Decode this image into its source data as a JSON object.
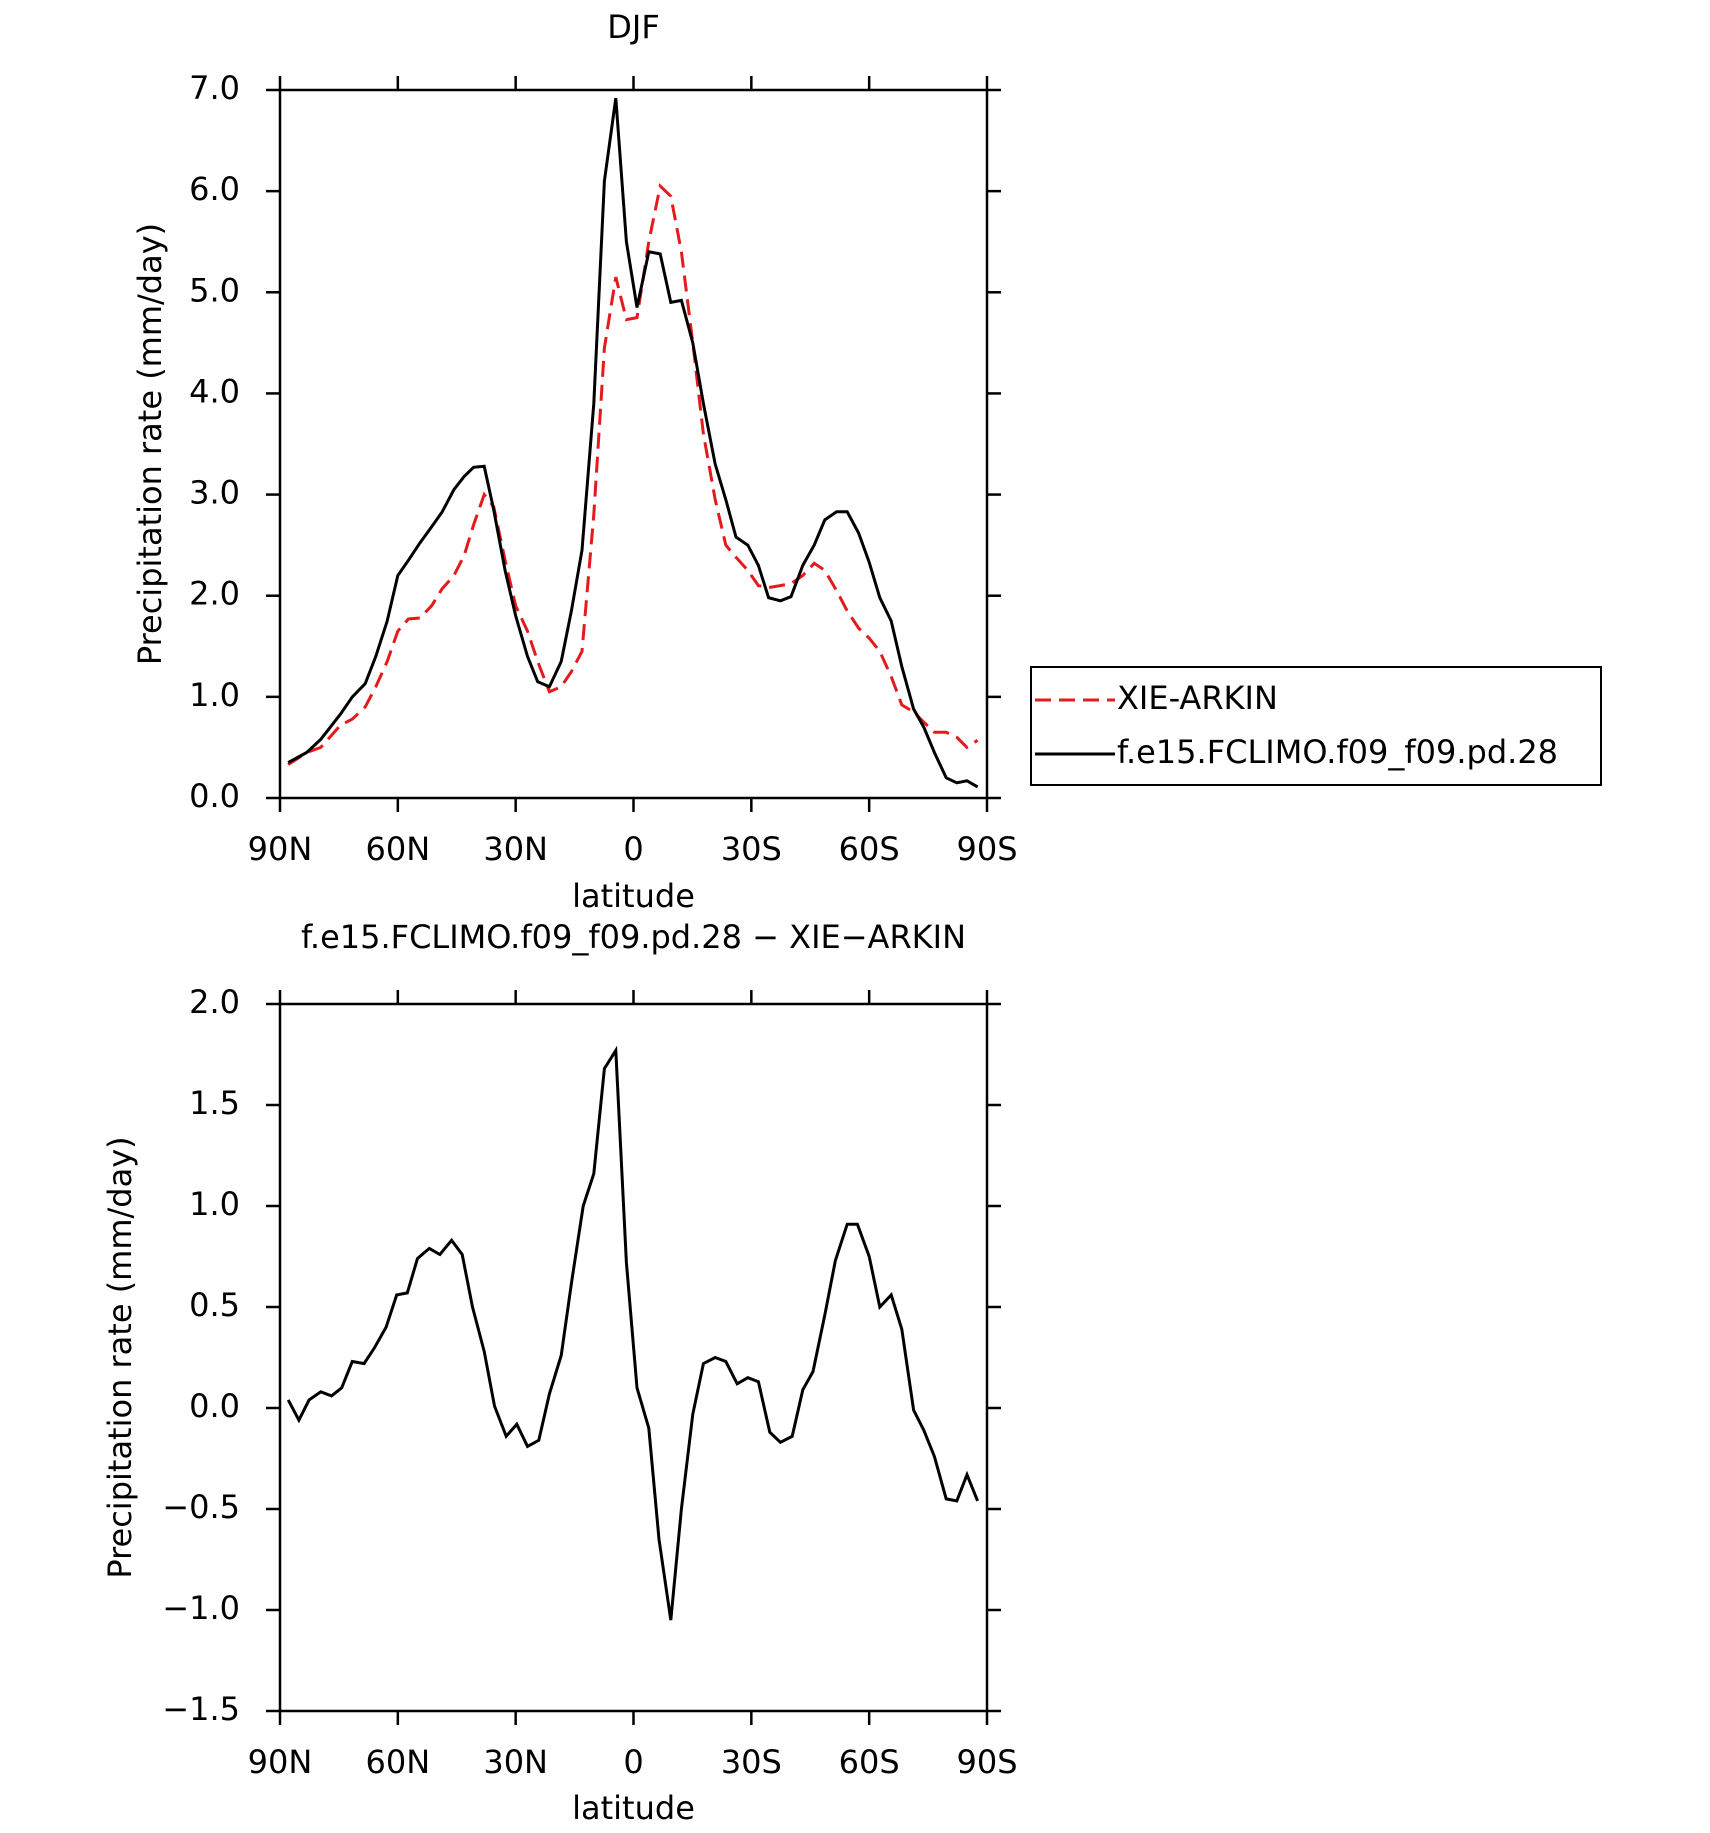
{
  "chart_data": [
    {
      "type": "line",
      "title": "DJF",
      "xlabel": "latitude",
      "ylabel": "Precipitation rate (mm/day)",
      "x": [
        87.9,
        83.2,
        79.6,
        74.6,
        71.6,
        68.3,
        65.6,
        62.7,
        60,
        57.3,
        54.4,
        51.4,
        48.7,
        45.7,
        43.1,
        40.7,
        38,
        35.6,
        32.7,
        30,
        27,
        24.4,
        21.4,
        18.4,
        15.8,
        13.1,
        10.1,
        7.4,
        4.5,
        1.8,
        -0.9,
        -3.9,
        -6.8,
        -9.5,
        -12.2,
        -15.1,
        -17.8,
        -20.8,
        -23.5,
        -26.1,
        -29.1,
        -31.8,
        -34.4,
        -37.4,
        -40.1,
        -43.1,
        -46,
        -48.7,
        -51.7,
        -54.4,
        -57.3,
        -60,
        -62.7,
        -65.6,
        -68.3,
        -71.3,
        -73.9,
        -76.6,
        -79.6,
        -82.3,
        -84.9,
        -87.6
      ],
      "series": [
        {
          "name": "XIE-ARKIN",
          "color": "#e41a1c",
          "dash": true,
          "values": [
            0.33,
            0.45,
            0.5,
            0.72,
            0.78,
            0.9,
            1.1,
            1.35,
            1.65,
            1.77,
            1.78,
            1.9,
            2.07,
            2.2,
            2.4,
            2.7,
            3.0,
            2.88,
            2.35,
            1.9,
            1.65,
            1.35,
            1.05,
            1.1,
            1.25,
            1.45,
            2.8,
            4.45,
            5.15,
            4.73,
            4.75,
            5.5,
            6.05,
            5.95,
            5.4,
            4.5,
            3.6,
            2.95,
            2.5,
            2.38,
            2.25,
            2.1,
            2.08,
            2.1,
            2.12,
            2.2,
            2.32,
            2.25,
            2.05,
            1.85,
            1.68,
            1.58,
            1.45,
            1.2,
            0.92,
            0.85,
            0.75,
            0.65,
            0.65,
            0.6,
            0.5,
            0.57
          ]
        },
        {
          "name": "f.e15.FCLIMO.f09_f09.pd.28",
          "color": "#000000",
          "dash": false,
          "values": [
            0.35,
            0.45,
            0.58,
            0.83,
            1.0,
            1.13,
            1.4,
            1.75,
            2.2,
            2.35,
            2.52,
            2.68,
            2.83,
            3.05,
            3.18,
            3.27,
            3.28,
            2.85,
            2.25,
            1.8,
            1.4,
            1.15,
            1.1,
            1.35,
            1.85,
            2.45,
            3.9,
            6.1,
            6.92,
            5.5,
            4.85,
            5.4,
            5.38,
            4.9,
            4.92,
            4.5,
            3.9,
            3.3,
            2.95,
            2.58,
            2.5,
            2.3,
            1.98,
            1.95,
            1.99,
            2.3,
            2.5,
            2.75,
            2.83,
            2.83,
            2.62,
            2.33,
            1.98,
            1.75,
            1.3,
            0.88,
            0.7,
            0.45,
            0.2,
            0.15,
            0.17,
            0.11
          ]
        }
      ],
      "xlim": [
        90,
        -90
      ],
      "xticks": [
        {
          "value": 90,
          "label": "90N"
        },
        {
          "value": 60,
          "label": "60N"
        },
        {
          "value": 30,
          "label": "30N"
        },
        0,
        {
          "value": -30,
          "label": "30S"
        },
        {
          "value": -60,
          "label": "60S"
        },
        {
          "value": -90,
          "label": "90S"
        }
      ],
      "ylim": [
        0,
        7
      ],
      "yticks": [
        {
          "value": 0,
          "label": "0.0"
        },
        {
          "value": 1,
          "label": "1.0"
        },
        {
          "value": 2,
          "label": "2.0"
        },
        {
          "value": 3,
          "label": "3.0"
        },
        {
          "value": 4,
          "label": "4.0"
        },
        {
          "value": 5,
          "label": "5.0"
        },
        {
          "value": 6,
          "label": "6.0"
        },
        {
          "value": 7,
          "label": "7.0"
        }
      ],
      "legend": "right"
    },
    {
      "type": "line",
      "title": "f.e15.FCLIMO.f09_f09.pd.28 − XIE−ARKIN",
      "xlabel": "latitude",
      "ylabel": "Precipitation rate (mm/day)",
      "x": [
        87.9,
        85.2,
        82.6,
        79.6,
        76.9,
        74.3,
        71.6,
        68.6,
        65.9,
        63.0,
        60.3,
        57.6,
        55.0,
        52.0,
        49.3,
        46.3,
        43.6,
        41.0,
        38.0,
        35.4,
        32.4,
        29.7,
        27.0,
        24.1,
        21.4,
        18.4,
        15.7,
        12.8,
        10.1,
        7.4,
        4.5,
        1.8,
        -0.9,
        -3.9,
        -6.5,
        -9.5,
        -12.2,
        -15.1,
        -17.8,
        -20.8,
        -23.5,
        -26.4,
        -29.1,
        -31.8,
        -34.7,
        -37.4,
        -40.4,
        -43.1,
        -45.7,
        -48.7,
        -51.4,
        -54.4,
        -57.0,
        -60.0,
        -62.7,
        -65.6,
        -68.3,
        -71.3,
        -73.9,
        -76.6,
        -79.6,
        -82.3,
        -84.9,
        -87.6
      ],
      "series": [
        {
          "color": "#000000",
          "dash": false,
          "values": [
            0.04,
            -0.06,
            0.04,
            0.08,
            0.06,
            0.1,
            0.23,
            0.22,
            0.3,
            0.4,
            0.56,
            0.57,
            0.74,
            0.79,
            0.76,
            0.83,
            0.76,
            0.5,
            0.28,
            0.01,
            -0.14,
            -0.08,
            -0.19,
            -0.16,
            0.07,
            0.26,
            0.63,
            1.0,
            1.16,
            1.68,
            1.77,
            0.72,
            0.1,
            -0.1,
            -0.65,
            -1.05,
            -0.5,
            -0.03,
            0.22,
            0.25,
            0.23,
            0.12,
            0.15,
            0.13,
            -0.12,
            -0.17,
            -0.14,
            0.09,
            0.18,
            0.46,
            0.73,
            0.91,
            0.91,
            0.75,
            0.5,
            0.56,
            0.39,
            -0.01,
            -0.11,
            -0.24,
            -0.45,
            -0.46,
            -0.33,
            -0.46
          ]
        }
      ],
      "xlim": [
        90,
        -90
      ],
      "xticks": [
        {
          "value": 90,
          "label": "90N"
        },
        {
          "value": 60,
          "label": "60N"
        },
        {
          "value": 30,
          "label": "30N"
        },
        0,
        {
          "value": -30,
          "label": "30S"
        },
        {
          "value": -60,
          "label": "60S"
        },
        {
          "value": -90,
          "label": "90S"
        }
      ],
      "ylim": [
        -1.5,
        2
      ],
      "yticks": [
        {
          "value": -1.5,
          "label": "−1.5"
        },
        {
          "value": -1,
          "label": "−1.0"
        },
        {
          "value": -0.5,
          "label": "−0.5"
        },
        {
          "value": 0,
          "label": "0.0"
        },
        {
          "value": 0.5,
          "label": "0.5"
        },
        {
          "value": 1,
          "label": "1.0"
        },
        {
          "value": 1.5,
          "label": "1.5"
        },
        {
          "value": 2,
          "label": "2.0"
        }
      ]
    }
  ]
}
